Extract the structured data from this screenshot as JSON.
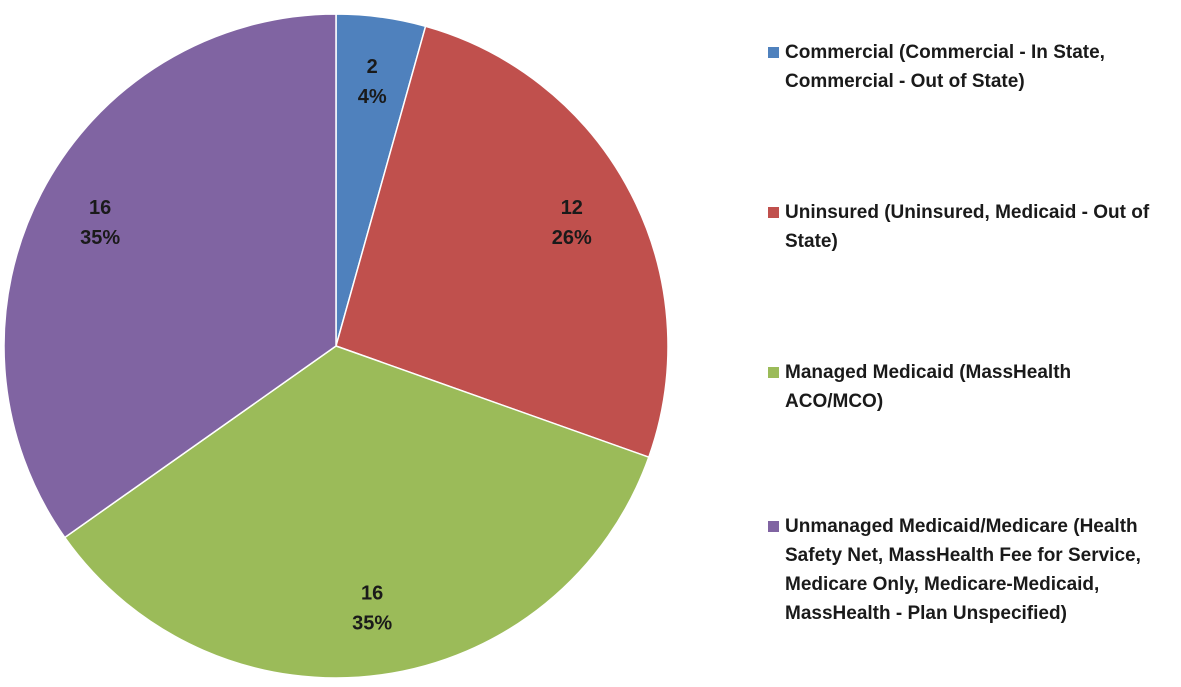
{
  "chart_data": {
    "type": "pie",
    "categories": [
      "Commercial (Commercial - In State, Commercial - Out of State)",
      "Uninsured (Uninsured, Medicaid - Out of State)",
      "Managed Medicaid (MassHealth ACO/MCO)",
      "Unmanaged Medicaid/Medicare (Health Safety Net, MassHealth Fee for Service, Medicare Only, Medicare-Medicaid, MassHealth - Plan Unspecified)"
    ],
    "values": [
      2,
      12,
      16,
      16
    ],
    "percent_labels": [
      "4%",
      "26%",
      "35%",
      "35%"
    ],
    "colors": [
      "#4f81bd",
      "#c0504d",
      "#9bbb59",
      "#8064a2"
    ],
    "legend": "right"
  }
}
